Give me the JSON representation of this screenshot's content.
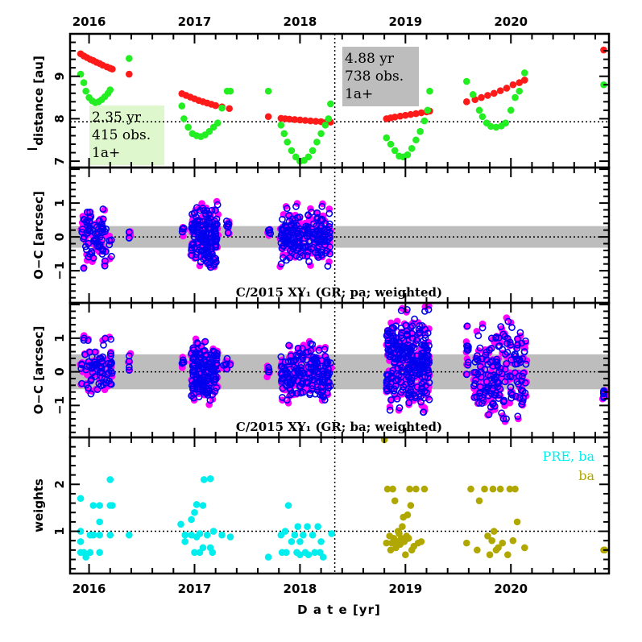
{
  "chart_data": {
    "type": "scatter",
    "title": "",
    "xlabel": "D a t e [yr]",
    "x_range": [
      2015.82,
      2020.93
    ],
    "x_ticks_major": [
      2016,
      2017,
      2018,
      2019,
      2020
    ],
    "x_tick_labels": [
      "2016",
      "2017",
      "2018",
      "2019",
      "2020"
    ],
    "vertical_marker": 2018.33,
    "panels": [
      {
        "id": "distance",
        "ylabel": "distance [au]",
        "ylim": [
          6.85,
          10.0
        ],
        "y_ticks": [
          7,
          8,
          9
        ],
        "y_tick_labels": [
          "7",
          "8",
          "9"
        ],
        "reference_line": 7.93,
        "annotations": [
          {
            "lines": [
              "2.35 yr",
              "415 obs.",
              "1a+"
            ],
            "bg": "#dff7cc",
            "position": "bottom-left"
          },
          {
            "lines": [
              "4.88 yr",
              "738 obs.",
              "1a+"
            ],
            "bg": "#bdbdbd",
            "position": "top-center"
          }
        ],
        "series": [
          {
            "name": "heliocentric distance",
            "color": "#ff1a1a",
            "x": [
              2015.92,
              2015.95,
              2015.98,
              2016.01,
              2016.04,
              2016.07,
              2016.1,
              2016.13,
              2016.17,
              2016.2,
              2016.22,
              2016.38,
              2016.88,
              2016.92,
              2016.96,
              2017.0,
              2017.04,
              2017.08,
              2017.12,
              2017.16,
              2017.2,
              2017.26,
              2017.33,
              2017.7,
              2017.82,
              2017.86,
              2017.9,
              2017.95,
              2018.0,
              2018.05,
              2018.1,
              2018.15,
              2018.2,
              2018.25,
              2018.29,
              2018.82,
              2018.86,
              2018.9,
              2018.95,
              2019.0,
              2019.05,
              2019.1,
              2019.15,
              2019.2,
              2019.23,
              2019.58,
              2019.66,
              2019.72,
              2019.78,
              2019.84,
              2019.9,
              2019.96,
              2020.02,
              2020.08,
              2020.13,
              2020.88
            ],
            "y": [
              9.53,
              9.48,
              9.44,
              9.4,
              9.37,
              9.33,
              9.3,
              9.26,
              9.22,
              9.19,
              9.17,
              9.05,
              8.59,
              8.55,
              8.51,
              8.47,
              8.43,
              8.4,
              8.37,
              8.34,
              8.31,
              8.28,
              8.24,
              8.05,
              8.01,
              8.0,
              7.99,
              7.98,
              7.97,
              7.96,
              7.95,
              7.94,
              7.93,
              7.92,
              7.92,
              8.0,
              8.02,
              8.04,
              8.06,
              8.08,
              8.1,
              8.12,
              8.14,
              8.16,
              8.18,
              8.4,
              8.45,
              8.5,
              8.55,
              8.6,
              8.66,
              8.72,
              8.8,
              8.85,
              8.91,
              9.62
            ]
          },
          {
            "name": "geocentric distance",
            "color": "#22ee22",
            "x": [
              2015.92,
              2015.95,
              2015.97,
              2016.0,
              2016.03,
              2016.06,
              2016.09,
              2016.12,
              2016.15,
              2016.18,
              2016.2,
              2016.38,
              2016.88,
              2016.9,
              2016.94,
              2016.98,
              2017.02,
              2017.06,
              2017.1,
              2017.14,
              2017.18,
              2017.22,
              2017.26,
              2017.31,
              2017.34,
              2017.7,
              2017.82,
              2017.85,
              2017.88,
              2017.92,
              2017.96,
              2018.0,
              2018.04,
              2018.08,
              2018.12,
              2018.16,
              2018.2,
              2018.24,
              2018.27,
              2018.29,
              2018.82,
              2018.86,
              2018.9,
              2018.94,
              2018.98,
              2019.02,
              2019.06,
              2019.1,
              2019.14,
              2019.18,
              2019.21,
              2019.23,
              2019.58,
              2019.64,
              2019.7,
              2019.73,
              2019.77,
              2019.81,
              2019.86,
              2019.91,
              2019.95,
              2020.0,
              2020.04,
              2020.08,
              2020.13,
              2020.88
            ],
            "y": [
              9.05,
              8.85,
              8.65,
              8.5,
              8.42,
              8.38,
              8.4,
              8.45,
              8.52,
              8.6,
              8.68,
              9.42,
              8.3,
              8.0,
              7.8,
              7.65,
              7.6,
              7.58,
              7.62,
              7.7,
              7.8,
              7.9,
              8.25,
              8.65,
              8.65,
              8.65,
              7.85,
              7.65,
              7.45,
              7.25,
              7.1,
              7.0,
              7.02,
              7.1,
              7.25,
              7.45,
              7.65,
              7.85,
              8.0,
              8.35,
              7.55,
              7.4,
              7.25,
              7.12,
              7.1,
              7.15,
              7.3,
              7.5,
              7.7,
              7.95,
              8.2,
              8.65,
              8.88,
              8.57,
              8.2,
              8.05,
              7.9,
              7.82,
              7.8,
              7.83,
              7.9,
              8.2,
              8.5,
              8.65,
              9.08,
              8.8
            ]
          }
        ]
      },
      {
        "id": "oc-pa",
        "ylabel": "O−C [arcsec]",
        "ylim": [
          -1.95,
          2.05
        ],
        "y_ticks": [
          -1,
          0,
          1
        ],
        "y_tick_labels": [
          "−1",
          "0",
          "1"
        ],
        "reference_line": 0,
        "band": [
          -0.32,
          0.32
        ],
        "panel_title": "C/2015 XY₁ (GR; pa; weighted)",
        "clusters": [
          {
            "x_range": [
              2015.92,
              2016.22
            ],
            "y_range": [
              -0.95,
              0.85
            ],
            "count": 70
          },
          {
            "x_range": [
              2016.38,
              2016.38
            ],
            "y_range": [
              -0.45,
              0.55
            ],
            "count": 4
          },
          {
            "x_range": [
              2016.88,
              2016.9
            ],
            "y_range": [
              0.0,
              0.5
            ],
            "count": 5
          },
          {
            "x_range": [
              2016.97,
              2017.22
            ],
            "y_range": [
              -0.9,
              0.95
            ],
            "count": 150
          },
          {
            "x_range": [
              2017.27,
              2017.34
            ],
            "y_range": [
              0.0,
              0.55
            ],
            "count": 6
          },
          {
            "x_range": [
              2017.7,
              2017.72
            ],
            "y_range": [
              -0.05,
              0.3
            ],
            "count": 4
          },
          {
            "x_range": [
              2017.82,
              2018.29
            ],
            "y_range": [
              -0.9,
              0.9
            ],
            "count": 170
          }
        ],
        "series": [
          {
            "name": "unweighted residual",
            "marker": "filled-circle",
            "color": "#ff00ff"
          },
          {
            "name": "weighted residual",
            "marker": "open-circle",
            "color": "#0000ee"
          }
        ]
      },
      {
        "id": "oc-ba",
        "ylabel": "O−C [arcsec]",
        "ylim": [
          -1.95,
          2.05
        ],
        "y_ticks": [
          -1,
          0,
          1
        ],
        "y_tick_labels": [
          "−1",
          "0",
          "1"
        ],
        "reference_line": 0,
        "band": [
          -0.52,
          0.52
        ],
        "panel_title": "C/2015 XY₁ (GR; ba; weighted)",
        "clusters": [
          {
            "x_range": [
              2015.92,
              2016.22
            ],
            "y_range": [
              -0.8,
              1.0
            ],
            "count": 70
          },
          {
            "x_range": [
              2016.38,
              2016.38
            ],
            "y_range": [
              -0.4,
              0.65
            ],
            "count": 4
          },
          {
            "x_range": [
              2016.88,
              2016.9
            ],
            "y_range": [
              0.0,
              0.5
            ],
            "count": 5
          },
          {
            "x_range": [
              2016.97,
              2017.22
            ],
            "y_range": [
              -0.95,
              0.9
            ],
            "count": 150
          },
          {
            "x_range": [
              2017.27,
              2017.34
            ],
            "y_range": [
              0.0,
              0.5
            ],
            "count": 6
          },
          {
            "x_range": [
              2017.7,
              2017.72
            ],
            "y_range": [
              -0.1,
              0.3
            ],
            "count": 4
          },
          {
            "x_range": [
              2017.82,
              2018.29
            ],
            "y_range": [
              -0.9,
              0.85
            ],
            "count": 170
          },
          {
            "x_range": [
              2018.82,
              2019.23
            ],
            "y_range": [
              -1.2,
              1.85
            ],
            "count": 260
          },
          {
            "x_range": [
              2019.58,
              2019.6
            ],
            "y_range": [
              -0.35,
              1.4
            ],
            "count": 10
          },
          {
            "x_range": [
              2019.65,
              2020.15
            ],
            "y_range": [
              -1.4,
              1.6
            ],
            "count": 150
          },
          {
            "x_range": [
              2020.88,
              2020.88
            ],
            "y_range": [
              -0.95,
              -0.55
            ],
            "count": 8
          }
        ],
        "series": [
          {
            "name": "unweighted residual",
            "marker": "filled-circle",
            "color": "#ff00ff"
          },
          {
            "name": "weighted residual",
            "marker": "open-circle",
            "color": "#0000ee"
          }
        ]
      },
      {
        "id": "weights",
        "ylabel": "weights",
        "ylim": [
          0.1,
          3.0
        ],
        "y_ticks": [
          1,
          2
        ],
        "y_tick_labels": [
          "1",
          "2"
        ],
        "reference_line": 1,
        "legend": [
          {
            "label": "PRE, ba",
            "color": "#00eeee"
          },
          {
            "label": "ba",
            "color": "#b0a800"
          }
        ],
        "legend_position": "top-right",
        "series": [
          {
            "name": "PRE, ba",
            "color": "#00eeee",
            "x": [
              2015.92,
              2015.92,
              2015.92,
              2015.92,
              2015.95,
              2015.97,
              2016.01,
              2016.01,
              2016.04,
              2016.04,
              2016.1,
              2016.1,
              2016.1,
              2016.1,
              2016.2,
              2016.2,
              2016.2,
              2016.22,
              2016.38,
              2016.87,
              2016.91,
              2016.91,
              2016.97,
              2016.97,
              2017.0,
              2017.0,
              2017.02,
              2017.02,
              2017.05,
              2017.05,
              2017.08,
              2017.08,
              2017.09,
              2017.12,
              2017.15,
              2017.15,
              2017.17,
              2017.18,
              2017.26,
              2017.34,
              2017.7,
              2017.82,
              2017.83,
              2017.86,
              2017.87,
              2017.89,
              2017.92,
              2017.95,
              2017.97,
              2017.98,
              2018.0,
              2018.0,
              2018.03,
              2018.05,
              2018.07,
              2018.08,
              2018.12,
              2018.14,
              2018.17,
              2018.19,
              2018.2,
              2018.22,
              2018.3
            ],
            "y": [
              1.7,
              1.0,
              0.78,
              0.55,
              0.55,
              0.45,
              0.92,
              0.55,
              1.55,
              0.92,
              1.55,
              1.2,
              0.92,
              0.55,
              1.55,
              2.1,
              0.92,
              1.55,
              0.92,
              1.15,
              0.92,
              0.78,
              1.25,
              0.92,
              1.4,
              0.55,
              0.88,
              1.57,
              0.55,
              0.95,
              0.65,
              1.55,
              2.1,
              0.92,
              2.12,
              0.65,
              0.55,
              1.0,
              0.92,
              0.88,
              0.45,
              0.92,
              0.55,
              1.0,
              0.55,
              1.55,
              0.78,
              0.92,
              0.55,
              1.1,
              0.78,
              0.5,
              0.92,
              0.55,
              1.1,
              0.5,
              0.92,
              0.55,
              1.1,
              0.55,
              0.78,
              0.45,
              0.95
            ]
          },
          {
            "name": "ba",
            "color": "#b0a800",
            "x": [
              2018.8,
              2018.82,
              2018.83,
              2018.85,
              2018.86,
              2018.87,
              2018.88,
              2018.89,
              2018.9,
              2018.91,
              2018.92,
              2018.93,
              2018.94,
              2018.95,
              2018.96,
              2018.97,
              2018.98,
              2018.99,
              2019.0,
              2019.01,
              2019.02,
              2019.03,
              2019.04,
              2019.05,
              2019.06,
              2019.08,
              2019.1,
              2019.12,
              2019.15,
              2019.18,
              2019.58,
              2019.62,
              2019.68,
              2019.7,
              2019.75,
              2019.78,
              2019.8,
              2019.82,
              2019.83,
              2019.84,
              2019.86,
              2019.88,
              2019.9,
              2019.92,
              2019.97,
              2019.99,
              2020.02,
              2020.04,
              2020.06,
              2020.13,
              2020.88,
              2020.89
            ],
            "y": [
              2.95,
              0.75,
              1.9,
              0.9,
              0.6,
              0.75,
              1.9,
              0.85,
              1.65,
              0.65,
              0.78,
              1.0,
              0.95,
              0.72,
              0.85,
              1.1,
              1.3,
              0.78,
              0.5,
              0.9,
              1.35,
              0.85,
              1.9,
              1.55,
              0.6,
              0.68,
              1.9,
              0.75,
              0.78,
              1.9,
              0.75,
              1.9,
              0.6,
              1.65,
              1.9,
              0.9,
              0.5,
              0.8,
              1.9,
              1.0,
              0.6,
              0.65,
              1.9,
              0.75,
              0.5,
              1.9,
              0.8,
              1.9,
              1.2,
              0.65,
              0.6,
              0.6
            ]
          }
        ]
      }
    ]
  },
  "legend_colors": {
    "pre_ba": "#00eeee",
    "ba": "#b0a800"
  }
}
